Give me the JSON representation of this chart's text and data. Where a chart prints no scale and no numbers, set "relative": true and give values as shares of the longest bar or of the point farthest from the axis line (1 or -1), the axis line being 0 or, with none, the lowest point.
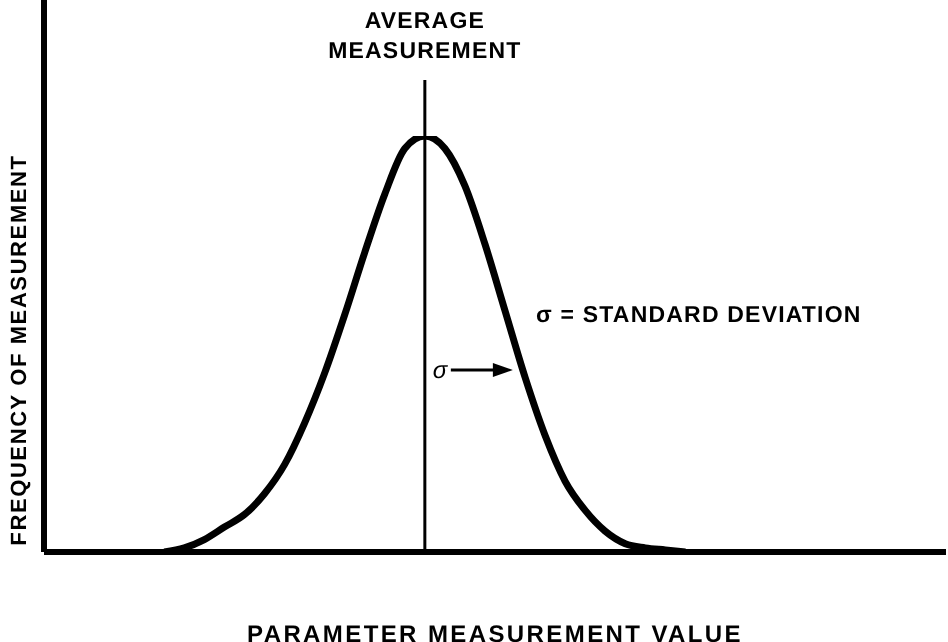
{
  "chart_data": {
    "type": "line",
    "relative": true,
    "xlabel": "PARAMETER MEASUREMENT VALUE",
    "ylabel": "FREQUENCY OF MEASUREMENT",
    "categories": [
      null,
      null,
      null,
      null,
      null,
      null,
      null,
      null,
      null,
      null,
      null,
      null,
      null,
      null,
      null,
      null,
      null,
      null,
      null,
      null,
      null,
      null,
      null,
      null,
      null,
      null,
      null,
      null,
      null,
      null,
      null,
      null,
      null,
      null,
      null,
      null,
      null,
      null,
      null,
      null,
      null,
      null,
      null,
      null,
      null,
      null
    ],
    "series": [
      {
        "color": "#000000",
        "values": [
          null,
          null,
          null,
          null,
          null,
          null,
          0,
          0.01,
          0.03,
          0.06,
          0.09,
          0.14,
          0.21,
          0.31,
          0.43,
          0.57,
          0.72,
          0.86,
          0.97,
          1,
          0.97,
          0.88,
          0.74,
          0.58,
          0.42,
          0.28,
          0.17,
          0.1,
          0.05,
          0.02,
          0.01,
          0.005,
          0,
          null,
          null,
          null,
          null,
          null,
          null,
          null,
          null,
          null,
          null,
          null,
          null,
          null
        ]
      }
    ],
    "annotations": [
      "AVERAGE MEASUREMENT",
      "σ = STANDARD DEVIATION",
      "σ"
    ],
    "grid": false,
    "legend": false,
    "marker": "none",
    "line_style": "solid"
  }
}
